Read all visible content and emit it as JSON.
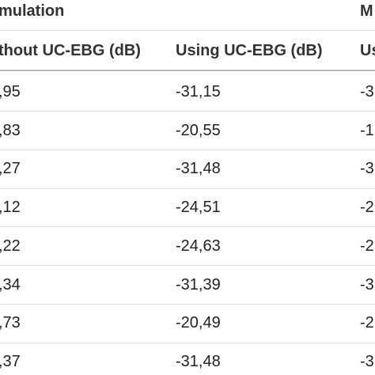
{
  "table": {
    "groups": [
      "mulation",
      "M"
    ],
    "columns": [
      "thout UC-EBG (dB)",
      "Using UC-EBG (dB)",
      "Us"
    ],
    "rows": [
      [
        ",95",
        "-31,15",
        "-3"
      ],
      [
        ",83",
        "-20,55",
        "-1"
      ],
      [
        ",27",
        "-31,48",
        "-3"
      ],
      [
        ",12",
        "-24,51",
        "-2"
      ],
      [
        ",22",
        "-24,63",
        "-2"
      ],
      [
        ",34",
        "-31,39",
        "-3"
      ],
      [
        ",73",
        "-20,49",
        "-2"
      ],
      [
        ",37",
        "-31,48",
        "-3"
      ]
    ]
  }
}
